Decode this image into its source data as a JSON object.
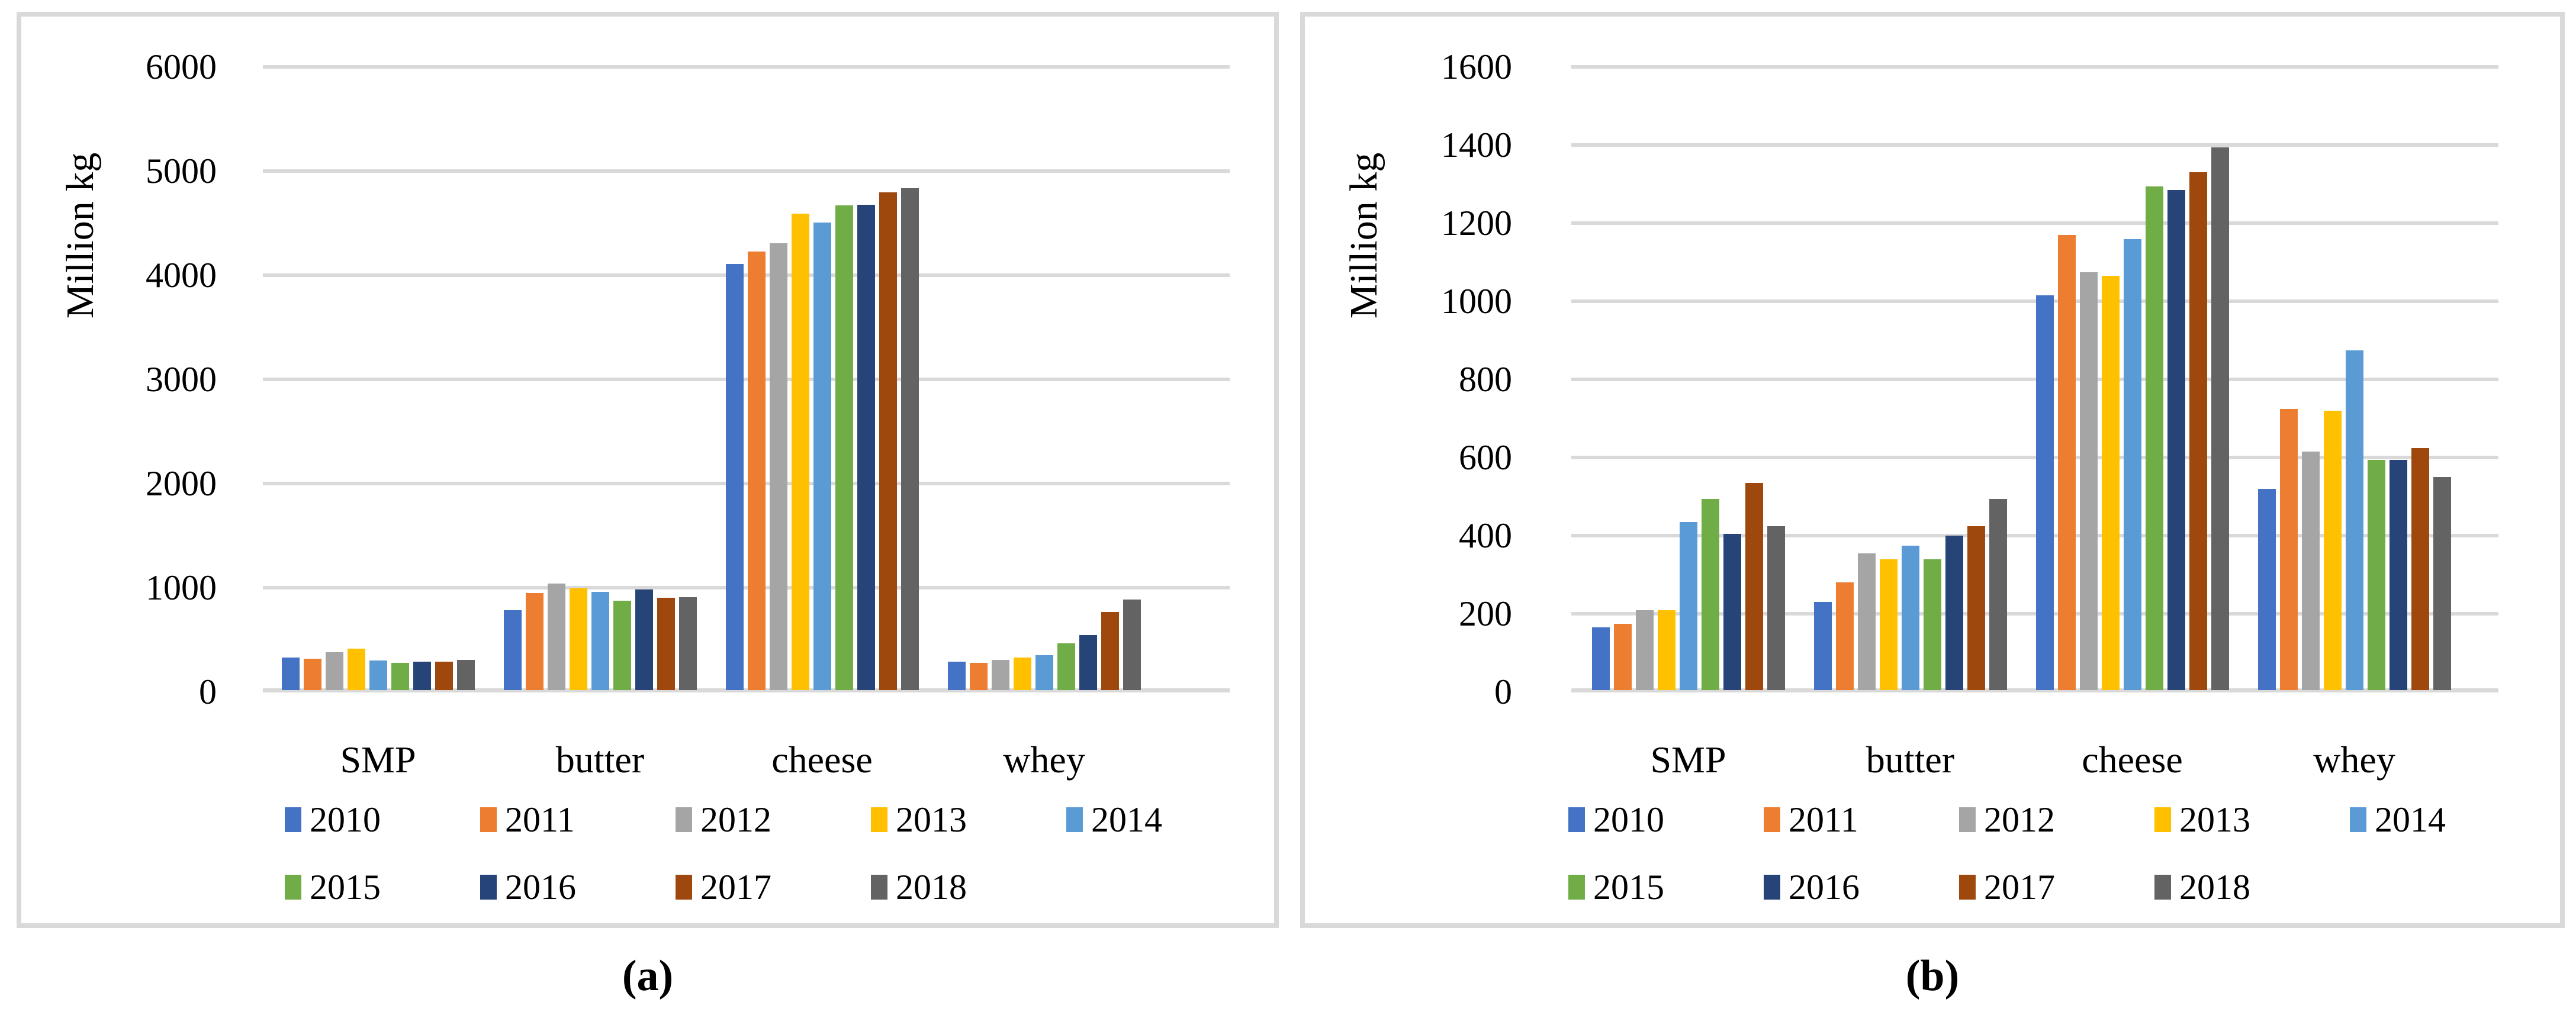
{
  "figure": {
    "caption_a": "(a)",
    "caption_b": "(b)"
  },
  "style": {
    "grid_color": "#D9D9D9",
    "panel_border_color": "#D9D9D9"
  },
  "chart_data": [
    {
      "id": "a",
      "type": "bar",
      "caption": "(a)",
      "ylabel": "Million kg",
      "ymax": 6000,
      "ylim": [
        0,
        6000
      ],
      "ytick_step": 1000,
      "yticks": [
        "6000",
        "5000",
        "4000",
        "3000",
        "2000",
        "1000",
        "0"
      ],
      "categories": [
        "SMP",
        "butter",
        "cheese",
        "whey"
      ],
      "grid": true,
      "legend_position": "bottom",
      "series": [
        {
          "name": "2010",
          "color": "#4472C4",
          "values": [
            315,
            765,
            4090,
            270
          ]
        },
        {
          "name": "2011",
          "color": "#ED7D31",
          "values": [
            300,
            930,
            4210,
            260
          ]
        },
        {
          "name": "2012",
          "color": "#A5A5A5",
          "values": [
            365,
            1025,
            4290,
            290
          ]
        },
        {
          "name": "2013",
          "color": "#FFC000",
          "values": [
            400,
            980,
            4575,
            310
          ]
        },
        {
          "name": "2014",
          "color": "#5B9BD5",
          "values": [
            285,
            945,
            4490,
            335
          ]
        },
        {
          "name": "2015",
          "color": "#70AD47",
          "values": [
            260,
            860,
            4655,
            450
          ]
        },
        {
          "name": "2016",
          "color": "#264478",
          "values": [
            270,
            965,
            4660,
            530
          ]
        },
        {
          "name": "2017",
          "color": "#9E480E",
          "values": [
            275,
            885,
            4780,
            750
          ]
        },
        {
          "name": "2018",
          "color": "#636363",
          "values": [
            290,
            890,
            4820,
            870
          ]
        }
      ]
    },
    {
      "id": "b",
      "type": "bar",
      "caption": "(b)",
      "ylabel": "Million kg",
      "ymax": 1600,
      "ylim": [
        0,
        1600
      ],
      "ytick_step": 200,
      "yticks": [
        "1600",
        "1400",
        "1200",
        "1000",
        "800",
        "600",
        "400",
        "200",
        "0"
      ],
      "categories": [
        "SMP",
        "butter",
        "cheese",
        "whey"
      ],
      "grid": true,
      "legend_position": "bottom",
      "series": [
        {
          "name": "2010",
          "color": "#4472C4",
          "values": [
            160,
            225,
            1010,
            515
          ]
        },
        {
          "name": "2011",
          "color": "#ED7D31",
          "values": [
            170,
            275,
            1165,
            720
          ]
        },
        {
          "name": "2012",
          "color": "#A5A5A5",
          "values": [
            205,
            350,
            1070,
            610
          ]
        },
        {
          "name": "2013",
          "color": "#FFC000",
          "values": [
            205,
            335,
            1060,
            715
          ]
        },
        {
          "name": "2014",
          "color": "#5B9BD5",
          "values": [
            430,
            370,
            1155,
            870
          ]
        },
        {
          "name": "2015",
          "color": "#70AD47",
          "values": [
            490,
            335,
            1290,
            590
          ]
        },
        {
          "name": "2016",
          "color": "#264478",
          "values": [
            400,
            395,
            1280,
            590
          ]
        },
        {
          "name": "2017",
          "color": "#9E480E",
          "values": [
            530,
            420,
            1325,
            620
          ]
        },
        {
          "name": "2018",
          "color": "#636363",
          "values": [
            420,
            490,
            1390,
            545
          ]
        }
      ]
    }
  ]
}
